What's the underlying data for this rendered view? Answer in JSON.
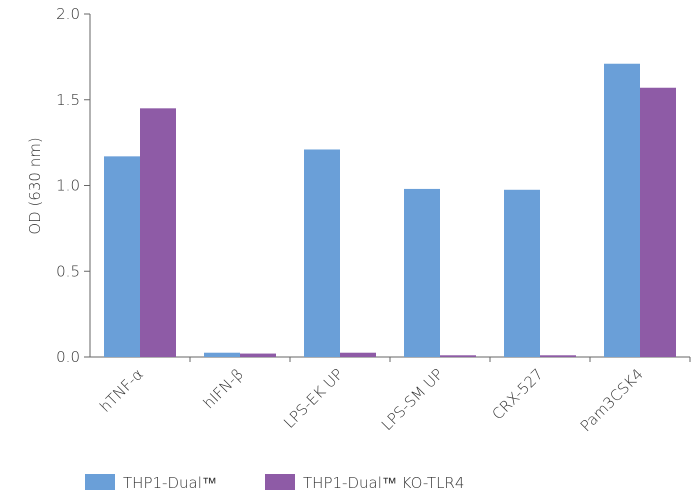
{
  "chart_data": {
    "type": "bar",
    "y_label": "OD (630 nm)",
    "categories": [
      "hTNF-α",
      "hIFN-β",
      "LPS-EK UP",
      "LPS-SM UP",
      "CRX-527",
      "Pam3CSK4"
    ],
    "series": [
      {
        "name": "THP1-Dual™",
        "color": "#6a9fd8",
        "values": [
          1.17,
          0.025,
          1.21,
          0.98,
          0.975,
          1.71
        ]
      },
      {
        "name": "THP1-Dual™ KO-TLR4",
        "color": "#8e5ba6",
        "values": [
          1.45,
          0.02,
          0.025,
          0.01,
          0.01,
          1.57
        ]
      }
    ],
    "ylim": [
      0,
      2.0
    ],
    "yticks": [
      {
        "value": 0,
        "label": "0.0"
      },
      0.5,
      {
        "value": 1,
        "label": "1.0"
      },
      1.5,
      {
        "value": 2,
        "label": "2.0"
      }
    ],
    "grid": false
  }
}
